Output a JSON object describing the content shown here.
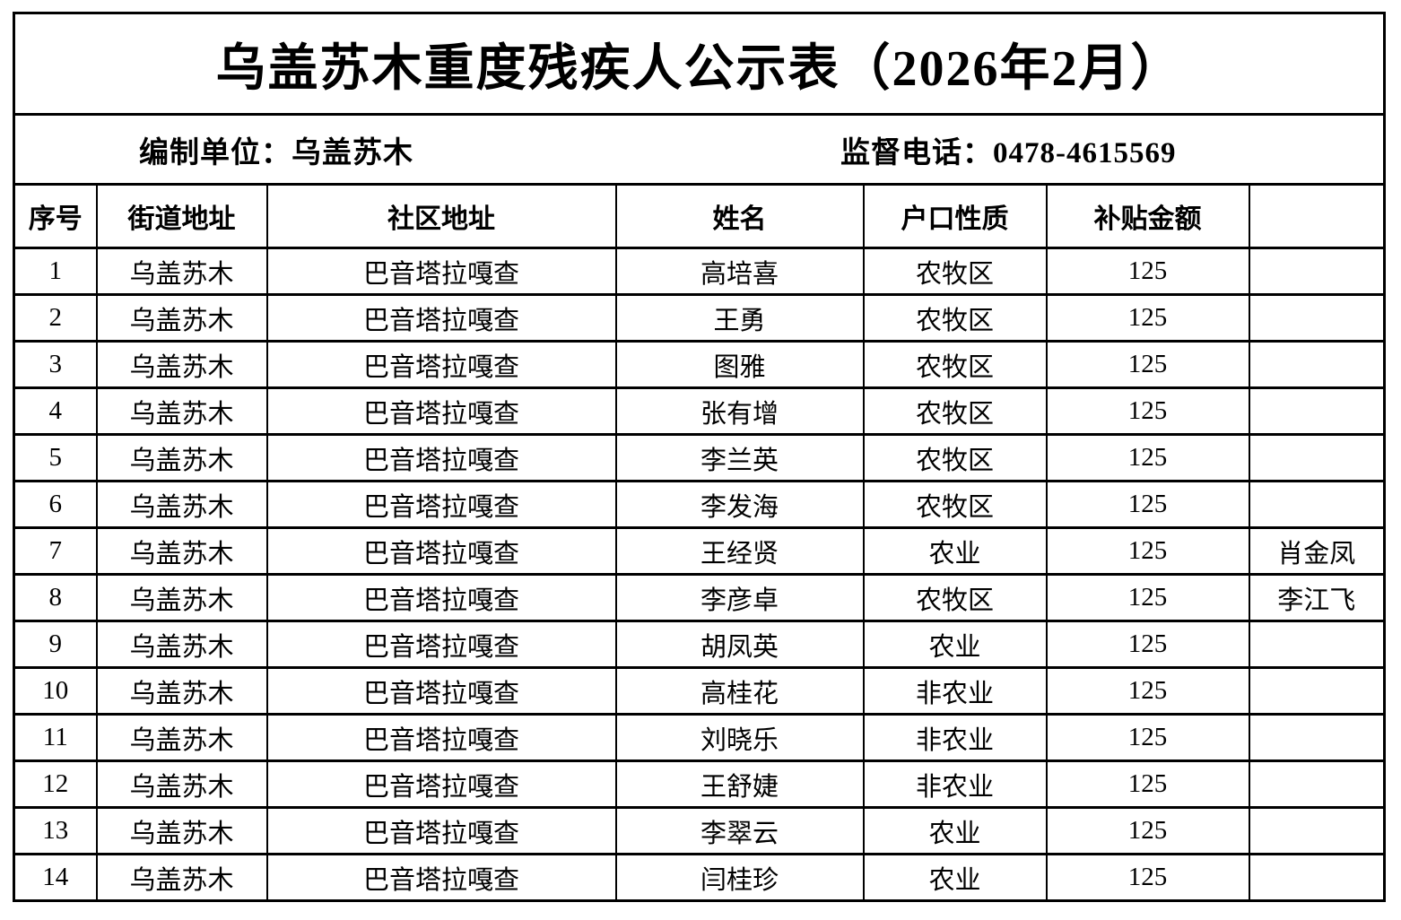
{
  "title": "乌盖苏木重度残疾人公示表（2026年2月）",
  "info": {
    "prepared_by": "编制单位：乌盖苏木",
    "supervision_phone": "监督电话：0478-4615569"
  },
  "table": {
    "columns": [
      "序号",
      "街道地址",
      "社区地址",
      "姓名",
      "户口性质",
      "补贴金额",
      ""
    ],
    "rows": [
      [
        "1",
        "乌盖苏木",
        "巴音塔拉嘎查",
        "高培喜",
        "农牧区",
        "125",
        ""
      ],
      [
        "2",
        "乌盖苏木",
        "巴音塔拉嘎查",
        "王勇",
        "农牧区",
        "125",
        ""
      ],
      [
        "3",
        "乌盖苏木",
        "巴音塔拉嘎查",
        "图雅",
        "农牧区",
        "125",
        ""
      ],
      [
        "4",
        "乌盖苏木",
        "巴音塔拉嘎查",
        "张有增",
        "农牧区",
        "125",
        ""
      ],
      [
        "5",
        "乌盖苏木",
        "巴音塔拉嘎查",
        "李兰英",
        "农牧区",
        "125",
        ""
      ],
      [
        "6",
        "乌盖苏木",
        "巴音塔拉嘎查",
        "李发海",
        "农牧区",
        "125",
        ""
      ],
      [
        "7",
        "乌盖苏木",
        "巴音塔拉嘎查",
        "王经贤",
        "农业",
        "125",
        "肖金凤"
      ],
      [
        "8",
        "乌盖苏木",
        "巴音塔拉嘎查",
        "李彦卓",
        "农牧区",
        "125",
        "李江飞"
      ],
      [
        "9",
        "乌盖苏木",
        "巴音塔拉嘎查",
        "胡凤英",
        "农业",
        "125",
        ""
      ],
      [
        "10",
        "乌盖苏木",
        "巴音塔拉嘎查",
        "高桂花",
        "非农业",
        "125",
        ""
      ],
      [
        "11",
        "乌盖苏木",
        "巴音塔拉嘎查",
        "刘晓乐",
        "非农业",
        "125",
        ""
      ],
      [
        "12",
        "乌盖苏木",
        "巴音塔拉嘎查",
        "王舒婕",
        "非农业",
        "125",
        ""
      ],
      [
        "13",
        "乌盖苏木",
        "巴音塔拉嘎查",
        "李翠云",
        "农业",
        "125",
        ""
      ],
      [
        "14",
        "乌盖苏木",
        "巴音塔拉嘎查",
        "闫桂珍",
        "农业",
        "125",
        ""
      ]
    ]
  },
  "colors": {
    "background": "#ffffff",
    "border": "#000000",
    "text": "#000000"
  }
}
